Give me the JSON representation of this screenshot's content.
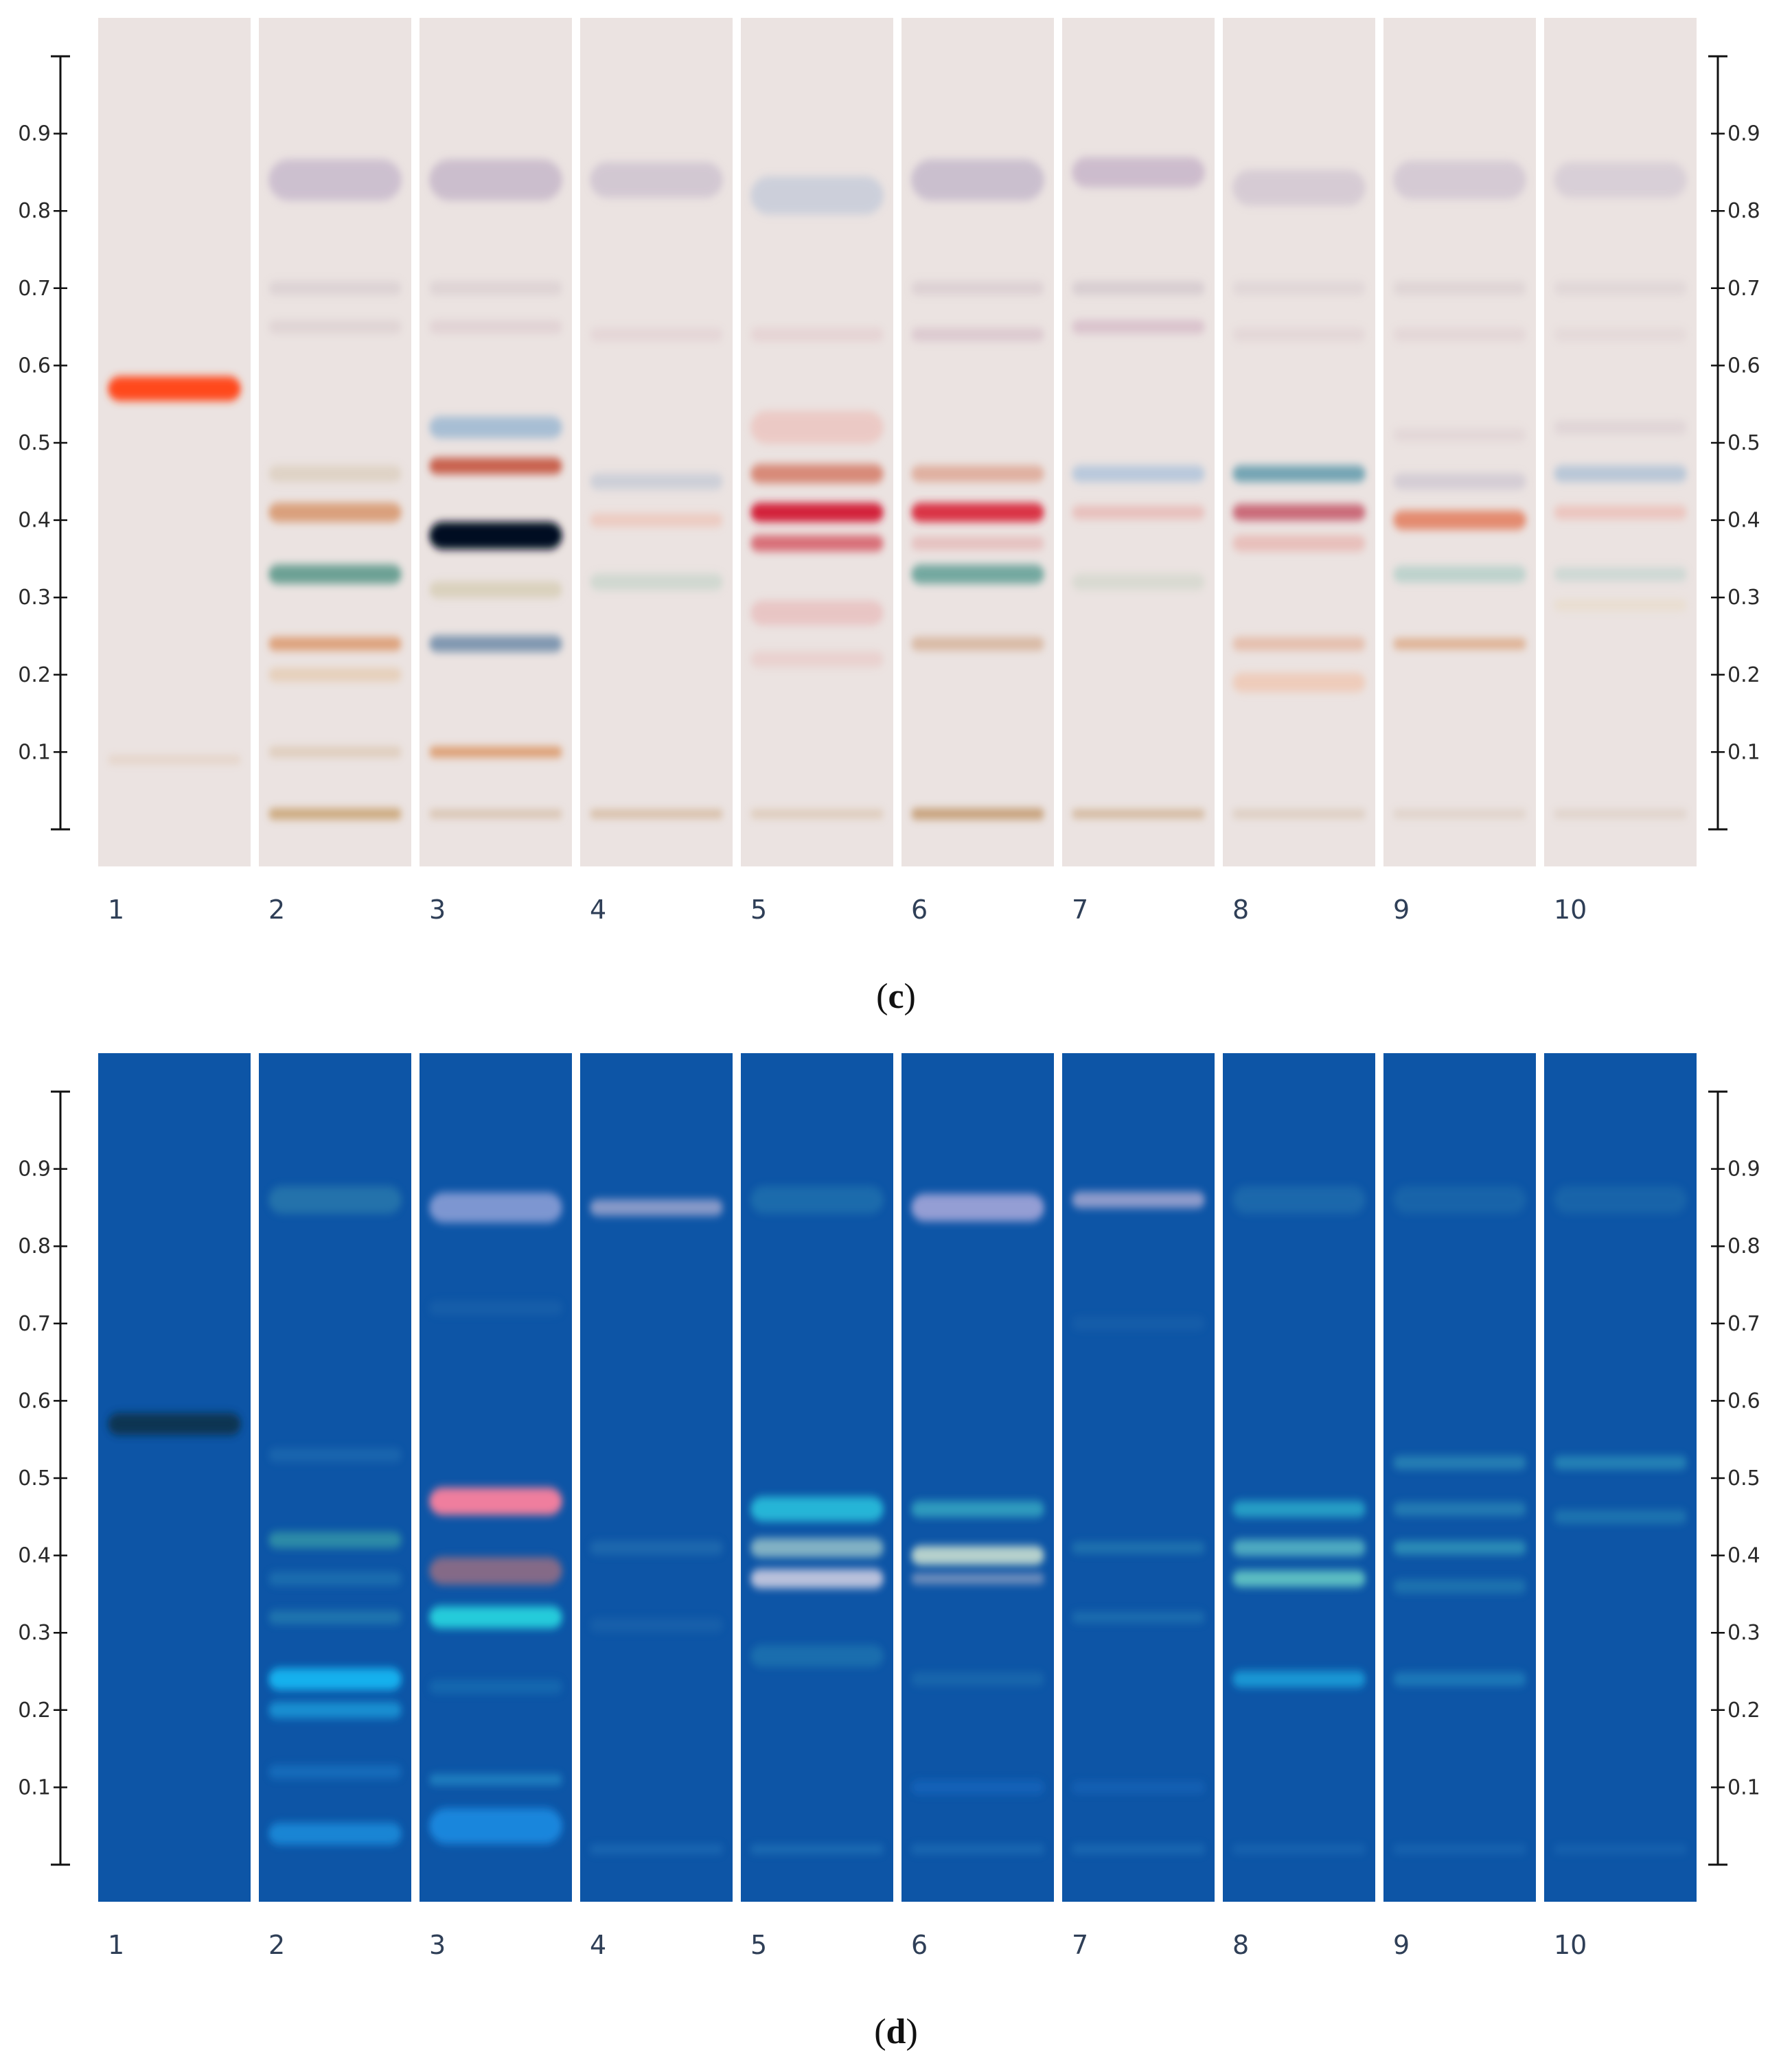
{
  "panels": [
    {
      "key": "c",
      "caption_letter": "c",
      "plate_color": "#ebe3e1",
      "lane_labels": [
        "1",
        "2",
        "3",
        "4",
        "5",
        "6",
        "7",
        "8",
        "9",
        "10"
      ],
      "rf_ticks": [
        "0.1",
        "0.2",
        "0.3",
        "0.4",
        "0.5",
        "0.6",
        "0.7",
        "0.8",
        "0.9"
      ],
      "lanes": [
        [
          {
            "rf": 0.57,
            "color": "#ff4a1c",
            "o": 1.0,
            "h": 18
          },
          {
            "rf": 0.09,
            "color": "#d9b89a",
            "o": 0.35,
            "h": 6
          }
        ],
        [
          {
            "rf": 0.84,
            "color": "#b9a9c4",
            "o": 0.6,
            "h": 30
          },
          {
            "rf": 0.7,
            "color": "#cfc3c8",
            "o": 0.5,
            "h": 10
          },
          {
            "rf": 0.65,
            "color": "#d2c3c6",
            "o": 0.45,
            "h": 10
          },
          {
            "rf": 0.46,
            "color": "#d3c2aa",
            "o": 0.5,
            "h": 12
          },
          {
            "rf": 0.41,
            "color": "#d7946a",
            "o": 0.85,
            "h": 14
          },
          {
            "rf": 0.33,
            "color": "#5f9a8c",
            "o": 0.9,
            "h": 14
          },
          {
            "rf": 0.24,
            "color": "#d98c5a",
            "o": 0.75,
            "h": 10
          },
          {
            "rf": 0.2,
            "color": "#e0b88c",
            "o": 0.45,
            "h": 10
          },
          {
            "rf": 0.1,
            "color": "#cfae88",
            "o": 0.4,
            "h": 8
          },
          {
            "rf": 0.02,
            "color": "#c49a64",
            "o": 0.8,
            "h": 8
          }
        ],
        [
          {
            "rf": 0.84,
            "color": "#b7a6c0",
            "o": 0.6,
            "h": 30
          },
          {
            "rf": 0.7,
            "color": "#cfc1c6",
            "o": 0.45,
            "h": 10
          },
          {
            "rf": 0.65,
            "color": "#d6c0c6",
            "o": 0.45,
            "h": 10
          },
          {
            "rf": 0.52,
            "color": "#9cb8d2",
            "o": 0.85,
            "h": 16
          },
          {
            "rf": 0.47,
            "color": "#c5523e",
            "o": 0.9,
            "h": 12
          },
          {
            "rf": 0.38,
            "color": "#050a22",
            "o": 1.0,
            "h": 20
          },
          {
            "rf": 0.31,
            "color": "#c9c09a",
            "o": 0.5,
            "h": 12
          },
          {
            "rf": 0.24,
            "color": "#6d8aa8",
            "o": 0.85,
            "h": 12
          },
          {
            "rf": 0.1,
            "color": "#d8884f",
            "o": 0.75,
            "h": 8
          },
          {
            "rf": 0.02,
            "color": "#c9a886",
            "o": 0.55,
            "h": 6
          }
        ],
        [
          {
            "rf": 0.84,
            "color": "#bfb2c7",
            "o": 0.55,
            "h": 26
          },
          {
            "rf": 0.64,
            "color": "#dbc3c8",
            "o": 0.4,
            "h": 10
          },
          {
            "rf": 0.45,
            "color": "#b9c2d2",
            "o": 0.6,
            "h": 12
          },
          {
            "rf": 0.4,
            "color": "#eeb8a8",
            "o": 0.55,
            "h": 10
          },
          {
            "rf": 0.32,
            "color": "#b6cdc0",
            "o": 0.5,
            "h": 12
          },
          {
            "rf": 0.02,
            "color": "#c8a27a",
            "o": 0.6,
            "h": 6
          }
        ],
        [
          {
            "rf": 0.82,
            "color": "#b3c0d6",
            "o": 0.55,
            "h": 28
          },
          {
            "rf": 0.64,
            "color": "#dfc1c5",
            "o": 0.45,
            "h": 10
          },
          {
            "rf": 0.52,
            "color": "#ecb9b3",
            "o": 0.6,
            "h": 24
          },
          {
            "rf": 0.46,
            "color": "#d47a66",
            "o": 0.85,
            "h": 14
          },
          {
            "rf": 0.41,
            "color": "#d3243a",
            "o": 1.0,
            "h": 14
          },
          {
            "rf": 0.37,
            "color": "#d55b66",
            "o": 0.85,
            "h": 12
          },
          {
            "rf": 0.28,
            "color": "#e6a8a8",
            "o": 0.5,
            "h": 18
          },
          {
            "rf": 0.22,
            "color": "#e7b8b5",
            "o": 0.4,
            "h": 12
          },
          {
            "rf": 0.02,
            "color": "#cfb08f",
            "o": 0.5,
            "h": 6
          }
        ],
        [
          {
            "rf": 0.84,
            "color": "#b5a8c2",
            "o": 0.6,
            "h": 30
          },
          {
            "rf": 0.7,
            "color": "#cfbfc6",
            "o": 0.5,
            "h": 10
          },
          {
            "rf": 0.64,
            "color": "#d0b6c2",
            "o": 0.55,
            "h": 10
          },
          {
            "rf": 0.46,
            "color": "#dc9f8a",
            "o": 0.75,
            "h": 12
          },
          {
            "rf": 0.41,
            "color": "#d92c3e",
            "o": 0.95,
            "h": 14
          },
          {
            "rf": 0.37,
            "color": "#e2a6a5",
            "o": 0.55,
            "h": 10
          },
          {
            "rf": 0.33,
            "color": "#5f9e94",
            "o": 0.85,
            "h": 14
          },
          {
            "rf": 0.24,
            "color": "#cd9f7e",
            "o": 0.6,
            "h": 10
          },
          {
            "rf": 0.02,
            "color": "#bd8f5f",
            "o": 0.8,
            "h": 8
          }
        ],
        [
          {
            "rf": 0.85,
            "color": "#b9a3c0",
            "o": 0.6,
            "h": 22
          },
          {
            "rf": 0.7,
            "color": "#c8bcc4",
            "o": 0.55,
            "h": 10
          },
          {
            "rf": 0.65,
            "color": "#cfaec0",
            "o": 0.6,
            "h": 10
          },
          {
            "rf": 0.46,
            "color": "#a8c0da",
            "o": 0.75,
            "h": 12
          },
          {
            "rf": 0.41,
            "color": "#e6a9a4",
            "o": 0.6,
            "h": 10
          },
          {
            "rf": 0.32,
            "color": "#c3cfbf",
            "o": 0.45,
            "h": 12
          },
          {
            "rf": 0.02,
            "color": "#c7a27a",
            "o": 0.7,
            "h": 6
          }
        ],
        [
          {
            "rf": 0.83,
            "color": "#c2b5c8",
            "o": 0.5,
            "h": 26
          },
          {
            "rf": 0.7,
            "color": "#d1c5ca",
            "o": 0.4,
            "h": 10
          },
          {
            "rf": 0.64,
            "color": "#d9c6ca",
            "o": 0.4,
            "h": 10
          },
          {
            "rf": 0.46,
            "color": "#5f9aac",
            "o": 0.85,
            "h": 12
          },
          {
            "rf": 0.41,
            "color": "#c45566",
            "o": 0.85,
            "h": 12
          },
          {
            "rf": 0.37,
            "color": "#e6a8a2",
            "o": 0.6,
            "h": 12
          },
          {
            "rf": 0.24,
            "color": "#e1a78c",
            "o": 0.6,
            "h": 10
          },
          {
            "rf": 0.19,
            "color": "#f1b99b",
            "o": 0.55,
            "h": 14
          },
          {
            "rf": 0.02,
            "color": "#c9b095",
            "o": 0.45,
            "h": 6
          }
        ],
        [
          {
            "rf": 0.84,
            "color": "#c0b2c8",
            "o": 0.5,
            "h": 28
          },
          {
            "rf": 0.7,
            "color": "#d0c4c8",
            "o": 0.45,
            "h": 10
          },
          {
            "rf": 0.64,
            "color": "#d9c5c9",
            "o": 0.4,
            "h": 10
          },
          {
            "rf": 0.51,
            "color": "#d8c7cb",
            "o": 0.4,
            "h": 10
          },
          {
            "rf": 0.45,
            "color": "#c2bccb",
            "o": 0.55,
            "h": 12
          },
          {
            "rf": 0.4,
            "color": "#e27c5c",
            "o": 0.85,
            "h": 14
          },
          {
            "rf": 0.33,
            "color": "#9fc7bf",
            "o": 0.6,
            "h": 12
          },
          {
            "rf": 0.24,
            "color": "#d99c72",
            "o": 0.7,
            "h": 8
          },
          {
            "rf": 0.02,
            "color": "#cdb7a3",
            "o": 0.4,
            "h": 6
          }
        ],
        [
          {
            "rf": 0.84,
            "color": "#c3b8cb",
            "o": 0.45,
            "h": 26
          },
          {
            "rf": 0.7,
            "color": "#d2c6ca",
            "o": 0.4,
            "h": 10
          },
          {
            "rf": 0.64,
            "color": "#d9c9cc",
            "o": 0.35,
            "h": 10
          },
          {
            "rf": 0.52,
            "color": "#d3c5cb",
            "o": 0.45,
            "h": 10
          },
          {
            "rf": 0.46,
            "color": "#9eb8d2",
            "o": 0.65,
            "h": 12
          },
          {
            "rf": 0.41,
            "color": "#ecb1a7",
            "o": 0.6,
            "h": 10
          },
          {
            "rf": 0.33,
            "color": "#b1cdc7",
            "o": 0.5,
            "h": 10
          },
          {
            "rf": 0.29,
            "color": "#e6d6b6",
            "o": 0.4,
            "h": 8
          },
          {
            "rf": 0.02,
            "color": "#cdb8a5",
            "o": 0.4,
            "h": 6
          }
        ]
      ]
    },
    {
      "key": "d",
      "caption_letter": "d",
      "plate_color": "#0d55a6",
      "lane_labels": [
        "1",
        "2",
        "3",
        "4",
        "5",
        "6",
        "7",
        "8",
        "9",
        "10"
      ],
      "rf_ticks": [
        "0.1",
        "0.2",
        "0.3",
        "0.4",
        "0.5",
        "0.6",
        "0.7",
        "0.8",
        "0.9"
      ],
      "lanes": [
        [
          {
            "rf": 0.57,
            "color": "#10304a",
            "o": 0.9,
            "h": 16
          }
        ],
        [
          {
            "rf": 0.86,
            "color": "#3b8fb0",
            "o": 0.5,
            "h": 20
          },
          {
            "rf": 0.53,
            "color": "#2c79b8",
            "o": 0.45,
            "h": 10
          },
          {
            "rf": 0.42,
            "color": "#3aa3a8",
            "o": 0.7,
            "h": 12
          },
          {
            "rf": 0.37,
            "color": "#2a85b8",
            "o": 0.5,
            "h": 10
          },
          {
            "rf": 0.32,
            "color": "#2e8fb6",
            "o": 0.55,
            "h": 10
          },
          {
            "rf": 0.24,
            "color": "#18b6f2",
            "o": 0.95,
            "h": 16
          },
          {
            "rf": 0.2,
            "color": "#1aa2e0",
            "o": 0.75,
            "h": 12
          },
          {
            "rf": 0.12,
            "color": "#1b7fcc",
            "o": 0.55,
            "h": 10
          },
          {
            "rf": 0.04,
            "color": "#1a92e0",
            "o": 0.8,
            "h": 16
          }
        ],
        [
          {
            "rf": 0.85,
            "color": "#8a9ed6",
            "o": 0.9,
            "h": 22
          },
          {
            "rf": 0.72,
            "color": "#2a6fb0",
            "o": 0.35,
            "h": 10
          },
          {
            "rf": 0.47,
            "color": "#ef7e9e",
            "o": 1.0,
            "h": 20
          },
          {
            "rf": 0.38,
            "color": "#8b6c86",
            "o": 0.95,
            "h": 20
          },
          {
            "rf": 0.32,
            "color": "#25d2de",
            "o": 0.95,
            "h": 16
          },
          {
            "rf": 0.23,
            "color": "#1f79b8",
            "o": 0.5,
            "h": 10
          },
          {
            "rf": 0.11,
            "color": "#2c9bd2",
            "o": 0.6,
            "h": 8
          },
          {
            "rf": 0.05,
            "color": "#1a8fe6",
            "o": 0.85,
            "h": 26
          }
        ],
        [
          {
            "rf": 0.85,
            "color": "#9ea6cf",
            "o": 0.85,
            "h": 12
          },
          {
            "rf": 0.41,
            "color": "#2d7ab6",
            "o": 0.5,
            "h": 10
          },
          {
            "rf": 0.31,
            "color": "#2670b0",
            "o": 0.4,
            "h": 10
          },
          {
            "rf": 0.02,
            "color": "#2a7cbf",
            "o": 0.5,
            "h": 6
          }
        ],
        [
          {
            "rf": 0.86,
            "color": "#2f86b4",
            "o": 0.45,
            "h": 20
          },
          {
            "rf": 0.46,
            "color": "#2cc6e0",
            "o": 0.85,
            "h": 18
          },
          {
            "rf": 0.41,
            "color": "#8fbcc8",
            "o": 0.9,
            "h": 14
          },
          {
            "rf": 0.37,
            "color": "#c3c7df",
            "o": 0.95,
            "h": 14
          },
          {
            "rf": 0.27,
            "color": "#2b8cb8",
            "o": 0.45,
            "h": 16
          },
          {
            "rf": 0.02,
            "color": "#2f86c2",
            "o": 0.5,
            "h": 6
          }
        ],
        [
          {
            "rf": 0.85,
            "color": "#9ca2d7",
            "o": 0.95,
            "h": 20
          },
          {
            "rf": 0.46,
            "color": "#3ab2c6",
            "o": 0.75,
            "h": 12
          },
          {
            "rf": 0.4,
            "color": "#bfd8cf",
            "o": 0.95,
            "h": 14
          },
          {
            "rf": 0.37,
            "color": "#9aa7c6",
            "o": 0.7,
            "h": 8
          },
          {
            "rf": 0.24,
            "color": "#2a80b6",
            "o": 0.4,
            "h": 10
          },
          {
            "rf": 0.1,
            "color": "#1967c0",
            "o": 0.7,
            "h": 10
          },
          {
            "rf": 0.02,
            "color": "#2a7fbf",
            "o": 0.5,
            "h": 6
          }
        ],
        [
          {
            "rf": 0.86,
            "color": "#a5a8d2",
            "o": 0.85,
            "h": 12
          },
          {
            "rf": 0.7,
            "color": "#2a6fb0",
            "o": 0.3,
            "h": 10
          },
          {
            "rf": 0.41,
            "color": "#3090b8",
            "o": 0.5,
            "h": 8
          },
          {
            "rf": 0.32,
            "color": "#2b84b8",
            "o": 0.5,
            "h": 8
          },
          {
            "rf": 0.1,
            "color": "#1b6ac0",
            "o": 0.55,
            "h": 8
          },
          {
            "rf": 0.02,
            "color": "#2a7fbf",
            "o": 0.5,
            "h": 6
          }
        ],
        [
          {
            "rf": 0.86,
            "color": "#2d7fb2",
            "o": 0.45,
            "h": 20
          },
          {
            "rf": 0.46,
            "color": "#2fb6d0",
            "o": 0.75,
            "h": 12
          },
          {
            "rf": 0.41,
            "color": "#5fc0c8",
            "o": 0.8,
            "h": 12
          },
          {
            "rf": 0.37,
            "color": "#6ad0c8",
            "o": 0.85,
            "h": 12
          },
          {
            "rf": 0.24,
            "color": "#1ea7e0",
            "o": 0.8,
            "h": 12
          },
          {
            "rf": 0.02,
            "color": "#2a7cbf",
            "o": 0.4,
            "h": 6
          }
        ],
        [
          {
            "rf": 0.86,
            "color": "#2a7aaf",
            "o": 0.4,
            "h": 20
          },
          {
            "rf": 0.52,
            "color": "#3aa0bf",
            "o": 0.55,
            "h": 10
          },
          {
            "rf": 0.46,
            "color": "#3aa0bf",
            "o": 0.5,
            "h": 10
          },
          {
            "rf": 0.41,
            "color": "#3fb0c2",
            "o": 0.6,
            "h": 10
          },
          {
            "rf": 0.36,
            "color": "#2f8fb8",
            "o": 0.5,
            "h": 10
          },
          {
            "rf": 0.24,
            "color": "#2a95c8",
            "o": 0.55,
            "h": 10
          },
          {
            "rf": 0.02,
            "color": "#2a7cbf",
            "o": 0.4,
            "h": 6
          }
        ],
        [
          {
            "rf": 0.86,
            "color": "#2a7aaf",
            "o": 0.4,
            "h": 20
          },
          {
            "rf": 0.52,
            "color": "#38a6c2",
            "o": 0.55,
            "h": 10
          },
          {
            "rf": 0.45,
            "color": "#3298bc",
            "o": 0.45,
            "h": 10
          },
          {
            "rf": 0.02,
            "color": "#2a7cbf",
            "o": 0.35,
            "h": 6
          }
        ]
      ]
    }
  ]
}
